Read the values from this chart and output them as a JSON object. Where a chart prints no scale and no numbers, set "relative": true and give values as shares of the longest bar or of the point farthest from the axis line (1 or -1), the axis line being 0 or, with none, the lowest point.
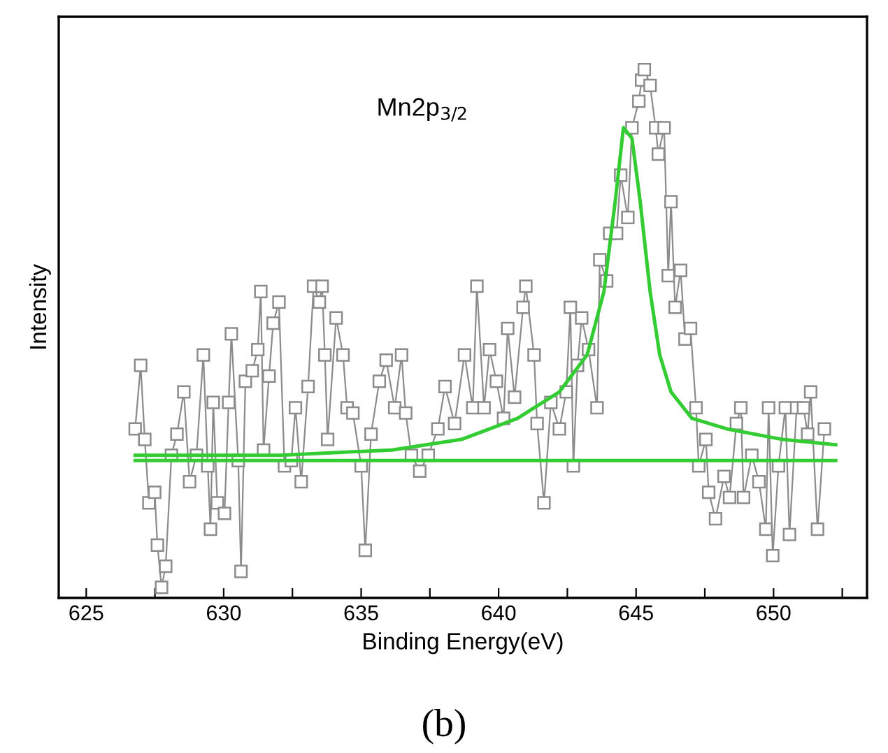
{
  "chart_data": {
    "type": "line",
    "relative": true,
    "xlabel": "Binding Energy(eV)",
    "ylabel": "Intensity",
    "tick_labels": "x",
    "grid": false,
    "legend": false,
    "xlim": [
      624.0,
      653.4
    ],
    "xticks": [
      625,
      {
        "value": 627.5,
        "label": null
      },
      630,
      {
        "value": 632.5,
        "label": null
      },
      635,
      {
        "value": 637.5,
        "label": null
      },
      640,
      {
        "value": 642.5,
        "label": null
      },
      645,
      {
        "value": 647.5,
        "label": null
      },
      650,
      {
        "value": 652.5,
        "label": null
      }
    ],
    "annotations": [
      "Mn2p$_{3/2}$",
      "(b)"
    ],
    "series": [
      {
        "color": "#8c8c8c",
        "marker": "square",
        "x": [
          626.78,
          626.98,
          627.13,
          627.28,
          627.49,
          627.59,
          627.74,
          627.89,
          628.1,
          628.3,
          628.55,
          628.76,
          629.01,
          629.26,
          629.42,
          629.52,
          629.62,
          629.77,
          630.03,
          630.18,
          630.28,
          630.53,
          630.63,
          630.79,
          631.04,
          631.24,
          631.35,
          631.45,
          631.65,
          631.8,
          632.01,
          632.21,
          632.46,
          632.61,
          632.82,
          633.07,
          633.27,
          633.48,
          633.58,
          633.68,
          633.78,
          634.09,
          634.34,
          634.49,
          634.7,
          635.0,
          635.15,
          635.36,
          635.66,
          635.91,
          636.22,
          636.47,
          636.62,
          636.83,
          637.13,
          637.44,
          637.79,
          638.05,
          638.4,
          638.76,
          639.06,
          639.21,
          639.47,
          639.67,
          639.92,
          640.18,
          640.33,
          640.58,
          640.89,
          640.99,
          641.29,
          641.4,
          641.65,
          641.9,
          642.21,
          642.46,
          642.61,
          642.72,
          642.87,
          643.02,
          643.27,
          643.58,
          643.68,
          643.93,
          644.04,
          644.29,
          644.44,
          644.7,
          644.85,
          645.1,
          645.2,
          645.3,
          645.51,
          645.71,
          645.81,
          646.02,
          646.17,
          646.27,
          646.42,
          646.62,
          646.78,
          646.98,
          647.18,
          647.28,
          647.54,
          647.64,
          647.89,
          648.2,
          648.4,
          648.65,
          648.81,
          648.91,
          649.21,
          649.47,
          649.72,
          649.82,
          649.97,
          650.18,
          650.43,
          650.58,
          650.84,
          651.09,
          651.24,
          651.35,
          651.6,
          651.85
        ],
        "values": [
          0.32,
          0.44,
          0.3,
          0.18,
          0.2,
          0.1,
          0.02,
          0.06,
          0.27,
          0.31,
          0.39,
          0.22,
          0.27,
          0.46,
          0.25,
          0.13,
          0.37,
          0.18,
          0.16,
          0.37,
          0.5,
          0.26,
          0.05,
          0.41,
          0.43,
          0.47,
          0.58,
          0.28,
          0.42,
          0.52,
          0.56,
          0.25,
          0.26,
          0.36,
          0.22,
          0.4,
          0.59,
          0.56,
          0.59,
          0.46,
          0.3,
          0.53,
          0.46,
          0.36,
          0.35,
          0.25,
          0.09,
          0.31,
          0.41,
          0.45,
          0.36,
          0.46,
          0.35,
          0.27,
          0.24,
          0.27,
          0.32,
          0.4,
          0.33,
          0.46,
          0.36,
          0.59,
          0.36,
          0.47,
          0.41,
          0.34,
          0.51,
          0.38,
          0.55,
          0.59,
          0.46,
          0.33,
          0.18,
          0.37,
          0.32,
          0.39,
          0.55,
          0.25,
          0.44,
          0.53,
          0.47,
          0.36,
          0.64,
          0.6,
          0.69,
          0.69,
          0.8,
          0.72,
          0.89,
          0.94,
          0.98,
          1.0,
          0.97,
          0.89,
          0.84,
          0.89,
          0.61,
          0.75,
          0.55,
          0.62,
          0.49,
          0.51,
          0.36,
          0.25,
          0.3,
          0.2,
          0.15,
          0.23,
          0.19,
          0.33,
          0.36,
          0.19,
          0.27,
          0.22,
          0.13,
          0.36,
          0.08,
          0.25,
          0.36,
          0.12,
          0.36,
          0.36,
          0.31,
          0.39,
          0.13,
          0.32
        ]
      },
      {
        "color": "#33cc33",
        "marker": "none",
        "x": [
          626.78,
          632.06,
          636.12,
          638.65,
          640.69,
          642.21,
          643.22,
          643.83,
          644.24,
          644.54,
          644.85,
          645.15,
          645.51,
          645.86,
          646.27,
          647.03,
          648.3,
          650.33,
          652.26
        ],
        "values": [
          0.27,
          0.27,
          0.28,
          0.3,
          0.34,
          0.39,
          0.46,
          0.58,
          0.75,
          0.89,
          0.87,
          0.75,
          0.58,
          0.46,
          0.39,
          0.34,
          0.32,
          0.3,
          0.29
        ]
      },
      {
        "color": "#33cc33",
        "marker": "none",
        "x": [
          626.78,
          652.26
        ],
        "values": [
          0.26,
          0.26
        ]
      }
    ]
  }
}
